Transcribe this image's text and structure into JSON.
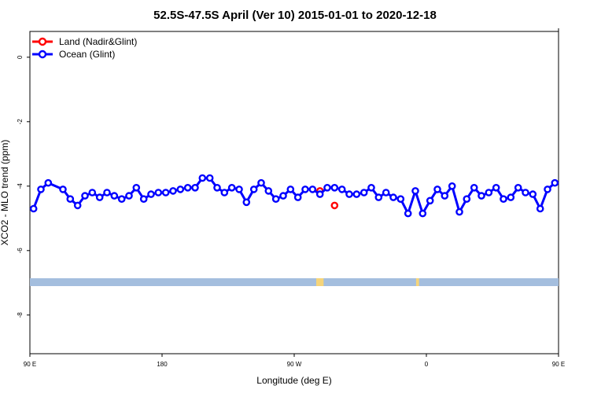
{
  "chart_data": {
    "type": "line",
    "title": "52.5S-47.5S April (Ver 10)   2015-01-01 to 2020-12-18",
    "xlabel": "Longitude (deg E)",
    "ylabel": "XCO2 - MLO trend (ppm)",
    "xlim": [
      90,
      450
    ],
    "ylim": [
      -9.2,
      0.8
    ],
    "x_ticks": [
      {
        "value": 90,
        "label": "90 E"
      },
      {
        "value": 180,
        "label": "180"
      },
      {
        "value": 270,
        "label": "90 W"
      },
      {
        "value": 360,
        "label": "0"
      },
      {
        "value": 450,
        "label": "90 E"
      }
    ],
    "x_ticks_top": [
      450
    ],
    "y_ticks": [
      {
        "value": 0,
        "label": "0"
      },
      {
        "value": -2,
        "label": "-2"
      },
      {
        "value": -4,
        "label": "-4"
      },
      {
        "value": -6,
        "label": "-6"
      },
      {
        "value": -8,
        "label": "-8"
      }
    ],
    "grid": false,
    "legend_position": "top-left",
    "series": [
      {
        "name": "Land (Nadir&Glint)",
        "color": "#ff0000",
        "connect": false,
        "x": [
          287.5,
          297.5
        ],
        "y": [
          -4.15,
          -4.6
        ]
      },
      {
        "name": "Ocean (Glint)",
        "color": "#0000ff",
        "connect": true,
        "x": [
          92.5,
          97.5,
          102.5,
          112.5,
          117.5,
          122.5,
          127.5,
          132.5,
          137.5,
          142.5,
          147.5,
          152.5,
          157.5,
          162.5,
          167.5,
          172.5,
          177.5,
          182.5,
          187.5,
          192.5,
          197.5,
          202.5,
          207.5,
          212.5,
          217.5,
          222.5,
          227.5,
          232.5,
          237.5,
          242.5,
          247.5,
          252.5,
          257.5,
          262.5,
          267.5,
          272.5,
          277.5,
          282.5,
          287.5,
          292.5,
          297.5,
          302.5,
          307.5,
          312.5,
          317.5,
          322.5,
          327.5,
          332.5,
          337.5,
          342.5,
          347.5,
          352.5,
          357.5,
          362.5,
          367.5,
          372.5,
          377.5,
          382.5,
          387.5,
          392.5,
          397.5,
          402.5,
          407.5,
          412.5,
          417.5,
          422.5,
          427.5,
          432.5,
          437.5,
          442.5,
          447.5
        ],
        "y": [
          -4.7,
          -4.1,
          -3.9,
          -4.1,
          -4.4,
          -4.6,
          -4.3,
          -4.2,
          -4.35,
          -4.2,
          -4.3,
          -4.4,
          -4.3,
          -4.05,
          -4.4,
          -4.25,
          -4.2,
          -4.2,
          -4.15,
          -4.1,
          -4.05,
          -4.05,
          -3.75,
          -3.75,
          -4.05,
          -4.2,
          -4.05,
          -4.1,
          -4.5,
          -4.1,
          -3.9,
          -4.15,
          -4.4,
          -4.3,
          -4.1,
          -4.35,
          -4.1,
          -4.1,
          -4.25,
          -4.05,
          -4.05,
          -4.1,
          -4.25,
          -4.25,
          -4.2,
          -4.05,
          -4.35,
          -4.2,
          -4.35,
          -4.4,
          -4.85,
          -4.15,
          -4.85,
          -4.45,
          -4.1,
          -4.3,
          -4.0,
          -4.8,
          -4.4,
          -4.05,
          -4.3,
          -4.2,
          -4.05,
          -4.4,
          -4.35,
          -4.05,
          -4.2,
          -4.25,
          -4.7,
          -4.1,
          -3.9
        ]
      }
    ]
  },
  "land_strip": {
    "band_color": "#a4bede",
    "land_color": "#f5d47a",
    "land_regions_lon": [
      [
        285,
        290
      ],
      [
        353,
        355
      ]
    ]
  }
}
